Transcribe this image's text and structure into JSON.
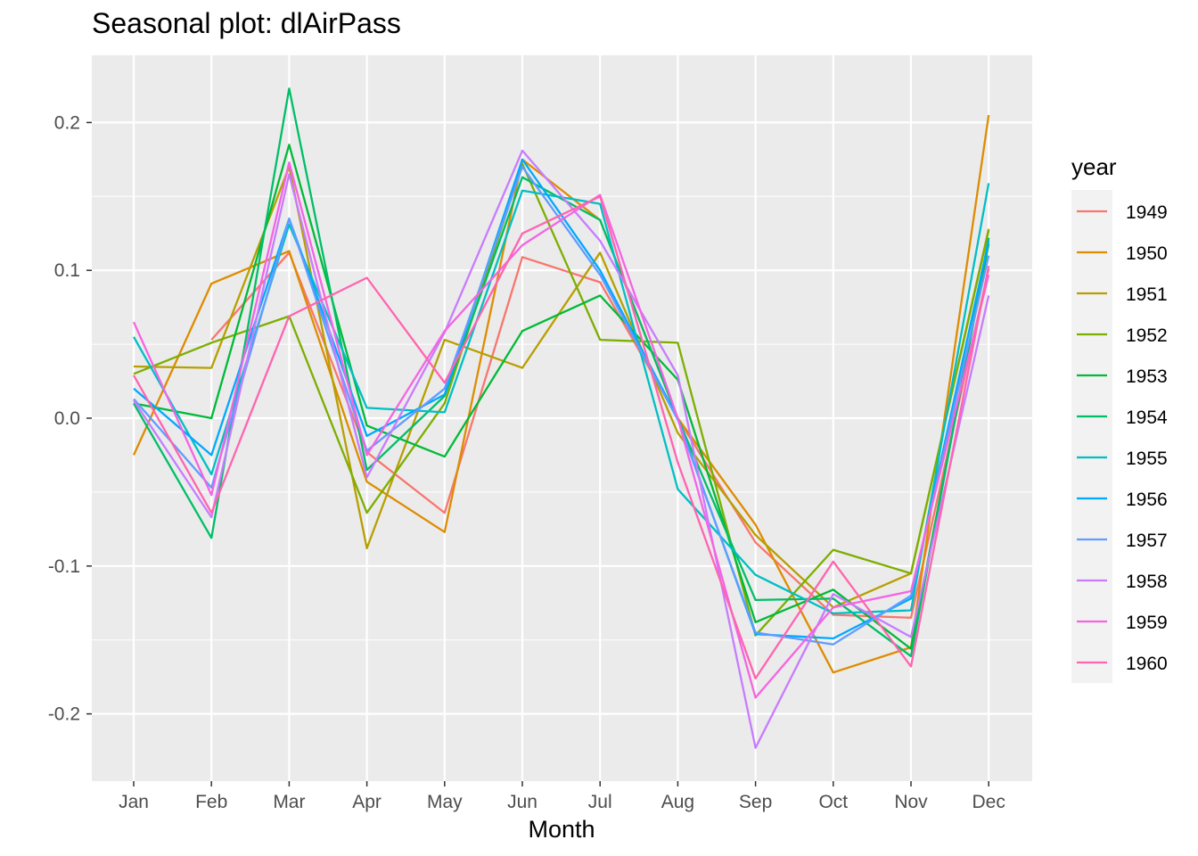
{
  "chart_data": {
    "type": "line",
    "title": "Seasonal plot: dlAirPass",
    "xlabel": "Month",
    "ylabel": "",
    "categories": [
      "Jan",
      "Feb",
      "Mar",
      "Apr",
      "May",
      "Jun",
      "Jul",
      "Aug",
      "Sep",
      "Oct",
      "Nov",
      "Dec"
    ],
    "ylim": [
      -0.245,
      0.245
    ],
    "yticks": [
      -0.2,
      -0.1,
      0.0,
      0.1,
      0.2
    ],
    "ytick_labels": [
      "-0.2",
      "-0.1",
      "0.0",
      "0.1",
      "0.2"
    ],
    "grid": true,
    "legend": {
      "title": "year",
      "position": "right"
    },
    "series": [
      {
        "name": "1949",
        "color": "#F8766D",
        "values": [
          null,
          0.053,
          0.112,
          -0.023,
          -0.064,
          0.109,
          0.092,
          0.0,
          -0.084,
          -0.133,
          -0.135,
          0.101
        ]
      },
      {
        "name": "1950",
        "color": "#DE8C00",
        "values": [
          -0.025,
          0.091,
          0.113,
          -0.043,
          -0.077,
          0.175,
          0.134,
          0.0,
          -0.072,
          -0.172,
          -0.155,
          0.205
        ]
      },
      {
        "name": "1951",
        "color": "#B79F00",
        "values": [
          0.035,
          0.034,
          0.17,
          -0.088,
          0.053,
          0.034,
          0.112,
          -0.01,
          -0.079,
          -0.128,
          -0.105,
          0.128
        ]
      },
      {
        "name": "1952",
        "color": "#7CAE00",
        "values": [
          0.03,
          0.051,
          0.069,
          -0.064,
          0.01,
          0.172,
          0.053,
          0.051,
          -0.147,
          -0.089,
          -0.105,
          0.127
        ]
      },
      {
        "name": "1953",
        "color": "#00BA38",
        "values": [
          0.01,
          0.0,
          0.185,
          -0.005,
          -0.026,
          0.059,
          0.083,
          0.026,
          -0.138,
          -0.116,
          -0.156,
          0.118
        ]
      },
      {
        "name": "1954",
        "color": "#00BE67",
        "values": [
          0.01,
          -0.081,
          0.223,
          -0.035,
          0.015,
          0.163,
          0.134,
          0.0,
          -0.123,
          -0.122,
          -0.161,
          0.122
        ]
      },
      {
        "name": "1955",
        "color": "#00BFC4",
        "values": [
          0.055,
          -0.038,
          0.131,
          0.007,
          0.004,
          0.154,
          0.145,
          -0.048,
          -0.106,
          -0.132,
          -0.13,
          0.159
        ]
      },
      {
        "name": "1956",
        "color": "#00A9FF",
        "values": [
          0.02,
          -0.025,
          0.135,
          -0.012,
          0.016,
          0.175,
          0.1,
          0.0,
          -0.146,
          -0.149,
          -0.122,
          0.12
        ]
      },
      {
        "name": "1957",
        "color": "#619CFF",
        "values": [
          0.013,
          -0.047,
          0.135,
          -0.022,
          0.02,
          0.17,
          0.097,
          -0.001,
          -0.145,
          -0.153,
          -0.12,
          0.11
        ]
      },
      {
        "name": "1958",
        "color": "#C77CFF",
        "values": [
          0.012,
          -0.067,
          0.165,
          -0.04,
          0.058,
          0.181,
          0.12,
          0.029,
          -0.223,
          -0.119,
          -0.148,
          0.083
        ]
      },
      {
        "name": "1959",
        "color": "#F564E3",
        "values": [
          0.065,
          -0.052,
          0.173,
          -0.025,
          0.059,
          0.117,
          0.151,
          0.0,
          -0.189,
          -0.128,
          -0.117,
          0.097
        ]
      },
      {
        "name": "1960",
        "color": "#FF64B0",
        "values": [
          0.029,
          -0.064,
          0.069,
          0.095,
          0.024,
          0.125,
          0.15,
          -0.03,
          -0.176,
          -0.097,
          -0.168,
          0.103
        ]
      }
    ]
  }
}
